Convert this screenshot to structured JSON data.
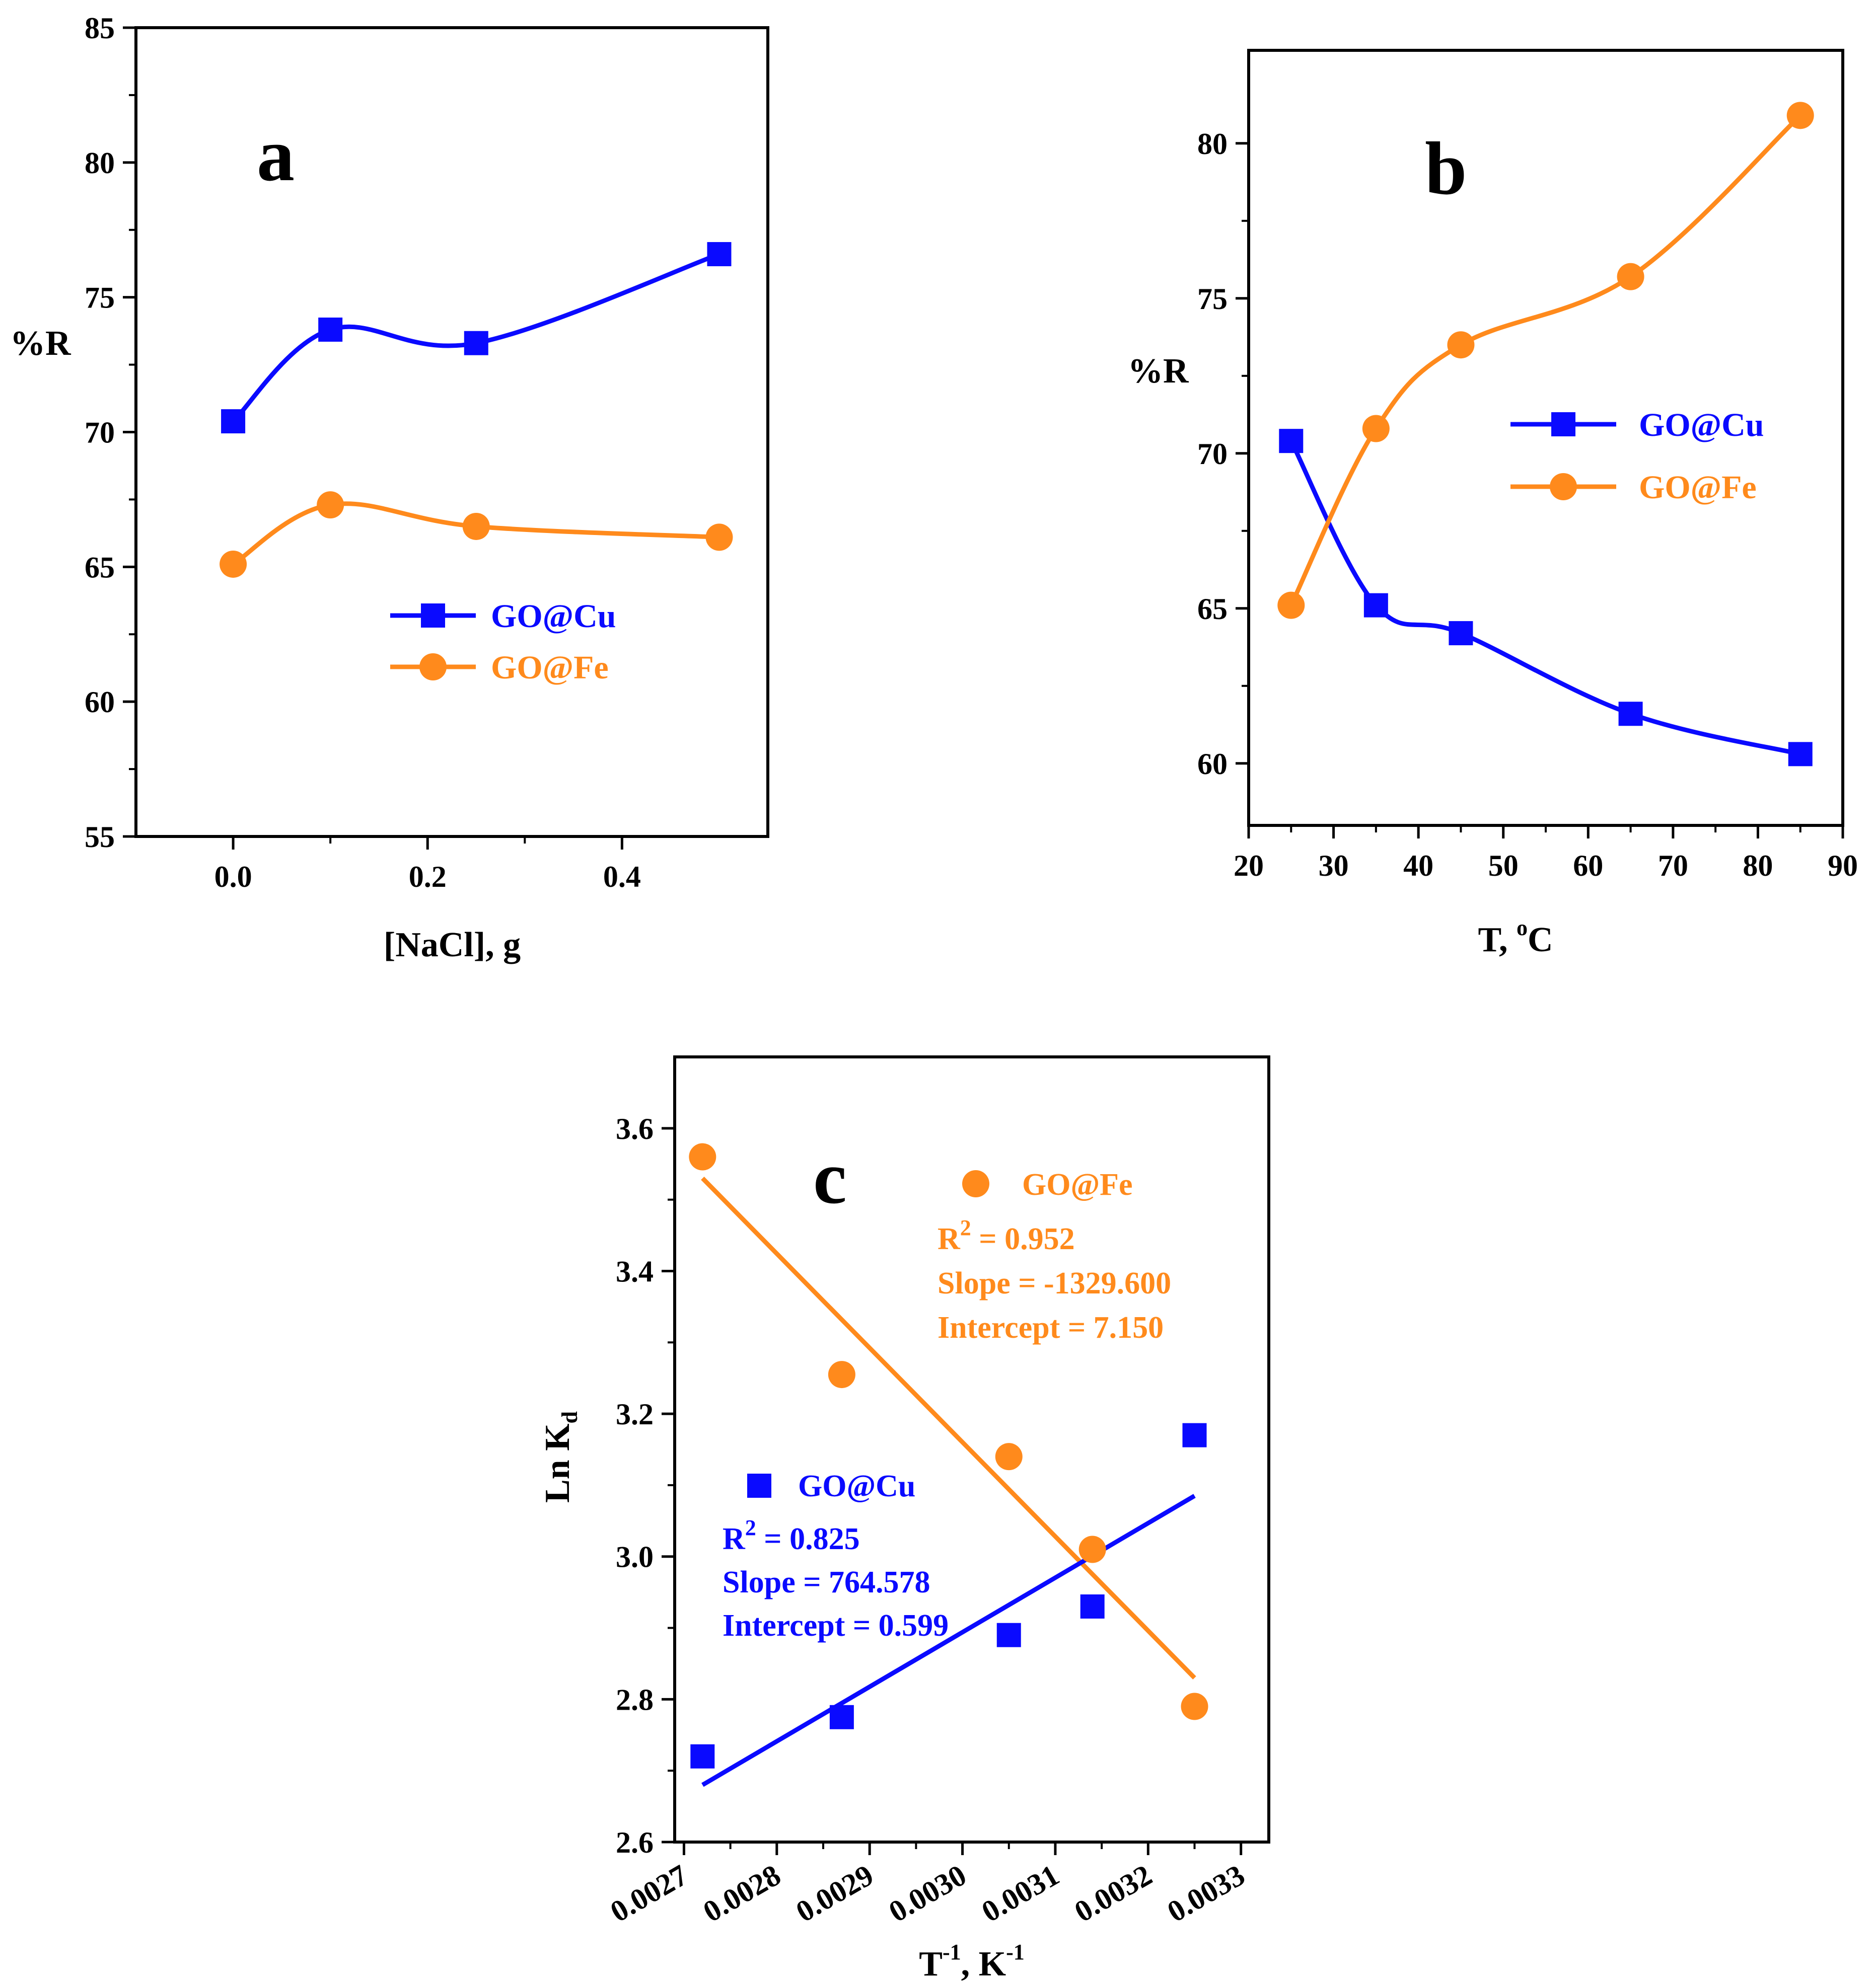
{
  "colors": {
    "cu": "#0a0aff",
    "fe": "#ff8a1c",
    "axis": "#000000"
  },
  "chart_data": [
    {
      "id": "a",
      "type": "line",
      "panel_label": "a",
      "xlabel": "[NaCl], g",
      "ylabel": "%R",
      "xlim": [
        -0.1,
        0.55
      ],
      "ylim": [
        55,
        85
      ],
      "xticks": [
        0.0,
        0.2,
        0.4
      ],
      "xtick_labels": [
        "0.0",
        "0.2",
        "0.4"
      ],
      "yticks": [
        55,
        60,
        65,
        70,
        75,
        80,
        85
      ],
      "ytick_labels": [
        "55",
        "60",
        "65",
        "70",
        "75",
        "80",
        "85"
      ],
      "legend_position": "center-right",
      "series": [
        {
          "name": "GO@Cu",
          "marker": "square",
          "color_key": "cu",
          "x": [
            0.0,
            0.1,
            0.25,
            0.5
          ],
          "y": [
            70.4,
            73.8,
            73.3,
            76.6
          ]
        },
        {
          "name": "GO@Fe",
          "marker": "circle",
          "color_key": "fe",
          "x": [
            0.0,
            0.1,
            0.25,
            0.5
          ],
          "y": [
            65.1,
            67.3,
            66.5,
            66.1
          ]
        }
      ]
    },
    {
      "id": "b",
      "type": "line",
      "panel_label": "b",
      "xlabel": "T, ",
      "xlabel_sup": "o",
      "xlabel_tail": "C",
      "ylabel": "%R",
      "xlim": [
        20,
        90
      ],
      "ylim": [
        58,
        83
      ],
      "xticks": [
        20,
        30,
        40,
        50,
        60,
        70,
        80,
        90
      ],
      "xtick_labels": [
        "20",
        "30",
        "40",
        "50",
        "60",
        "70",
        "80",
        "90"
      ],
      "yticks": [
        60,
        65,
        70,
        75,
        80
      ],
      "ytick_labels": [
        "60",
        "65",
        "70",
        "75",
        "80"
      ],
      "legend_position": "center-right",
      "series": [
        {
          "name": "GO@Cu",
          "marker": "square",
          "color_key": "cu",
          "x": [
            25,
            35,
            45,
            65,
            85
          ],
          "y": [
            70.4,
            65.1,
            64.2,
            61.6,
            60.3
          ]
        },
        {
          "name": "GO@Fe",
          "marker": "circle",
          "color_key": "fe",
          "x": [
            25,
            35,
            45,
            65,
            85
          ],
          "y": [
            65.1,
            70.8,
            73.5,
            75.7,
            80.9
          ]
        }
      ]
    },
    {
      "id": "c",
      "type": "scatter",
      "panel_label": "c",
      "xlabel": "T",
      "xlabel_sup": "-1",
      "xlabel_mid": ", K",
      "xlabel_sup2": "-1",
      "ylabel": "Ln K",
      "ylabel_sub": "d",
      "xlim": [
        0.00269,
        0.00333
      ],
      "ylim": [
        2.6,
        3.7
      ],
      "xticks": [
        0.0027,
        0.0028,
        0.0029,
        0.003,
        0.0031,
        0.0032,
        0.0033
      ],
      "xtick_labels": [
        "0.0027",
        "0.0028",
        "0.0029",
        "0.0030",
        "0.0031",
        "0.0032",
        "0.0033"
      ],
      "yticks": [
        2.6,
        2.8,
        3.0,
        3.2,
        3.4,
        3.6
      ],
      "ytick_labels": [
        "2.6",
        "2.8",
        "3.0",
        "3.2",
        "3.4",
        "3.6"
      ],
      "series": [
        {
          "name": "GO@Fe",
          "marker": "circle",
          "color_key": "fe",
          "x": [
            0.00272,
            0.00287,
            0.00305,
            0.00314,
            0.00325
          ],
          "y": [
            3.56,
            3.255,
            3.14,
            3.01,
            2.79
          ],
          "fit_x": [
            0.00272,
            0.00325
          ],
          "fit_y": [
            3.53,
            2.83
          ],
          "r2_label": "R",
          "r2_sup": "2",
          "r2_value": " = 0.952",
          "slope_text": "Slope = -1329.600",
          "intercept_text": "Intercept = 7.150"
        },
        {
          "name": "GO@Cu",
          "marker": "square",
          "color_key": "cu",
          "x": [
            0.00272,
            0.00287,
            0.00305,
            0.00314,
            0.00325
          ],
          "y": [
            2.72,
            2.775,
            2.89,
            2.93,
            3.17
          ],
          "fit_x": [
            0.00272,
            0.00325
          ],
          "fit_y": [
            2.68,
            3.085
          ],
          "r2_label": "R",
          "r2_sup": "2",
          "r2_value": " = 0.825",
          "slope_text": "Slope = 764.578",
          "intercept_text": "Intercept = 0.599"
        }
      ]
    }
  ]
}
